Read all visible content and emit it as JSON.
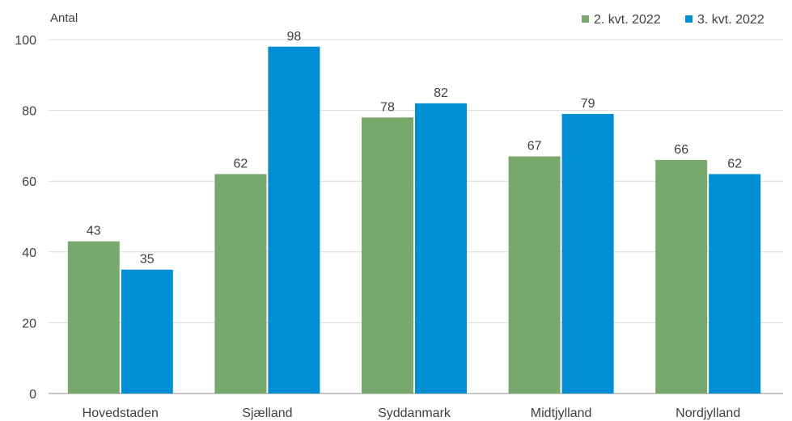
{
  "chart_data": {
    "type": "bar",
    "title": "",
    "ylabel": "Antal",
    "xlabel": "",
    "ylim": [
      0,
      100
    ],
    "yticks": [
      0,
      20,
      40,
      60,
      80,
      100
    ],
    "grid": true,
    "legend_position": "top-right",
    "categories": [
      "Hovedstaden",
      "Sjælland",
      "Syddanmark",
      "Midtjylland",
      "Nordjylland"
    ],
    "series": [
      {
        "name": "2. kvt. 2022",
        "color": "#77a96d",
        "values": [
          43,
          62,
          78,
          67,
          66
        ]
      },
      {
        "name": "3. kvt. 2022",
        "color": "#008ed5",
        "values": [
          35,
          98,
          82,
          79,
          62
        ]
      }
    ]
  }
}
